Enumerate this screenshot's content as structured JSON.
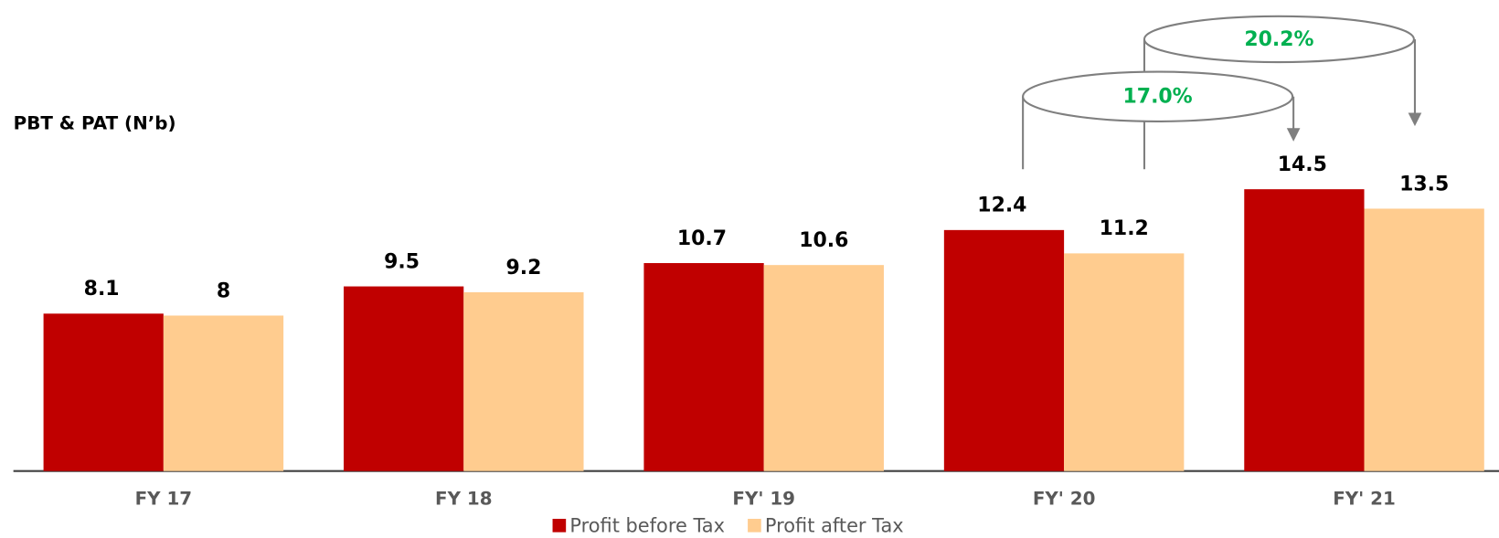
{
  "chart_data": {
    "type": "bar",
    "title": "PBT & PAT (N’b)",
    "categories": [
      "FY 17",
      "FY 18",
      "FY' 19",
      "FY' 20",
      "FY' 21"
    ],
    "series": [
      {
        "name": "Profit before Tax",
        "color": "#c00000",
        "values": [
          8.1,
          9.5,
          10.7,
          12.4,
          14.5
        ]
      },
      {
        "name": "Profit after Tax",
        "color": "#ffcc8f",
        "values": [
          8,
          9.2,
          10.6,
          11.2,
          13.5
        ]
      }
    ],
    "annotations": [
      "17.0%",
      "20.2%"
    ],
    "legend": "bottom"
  }
}
